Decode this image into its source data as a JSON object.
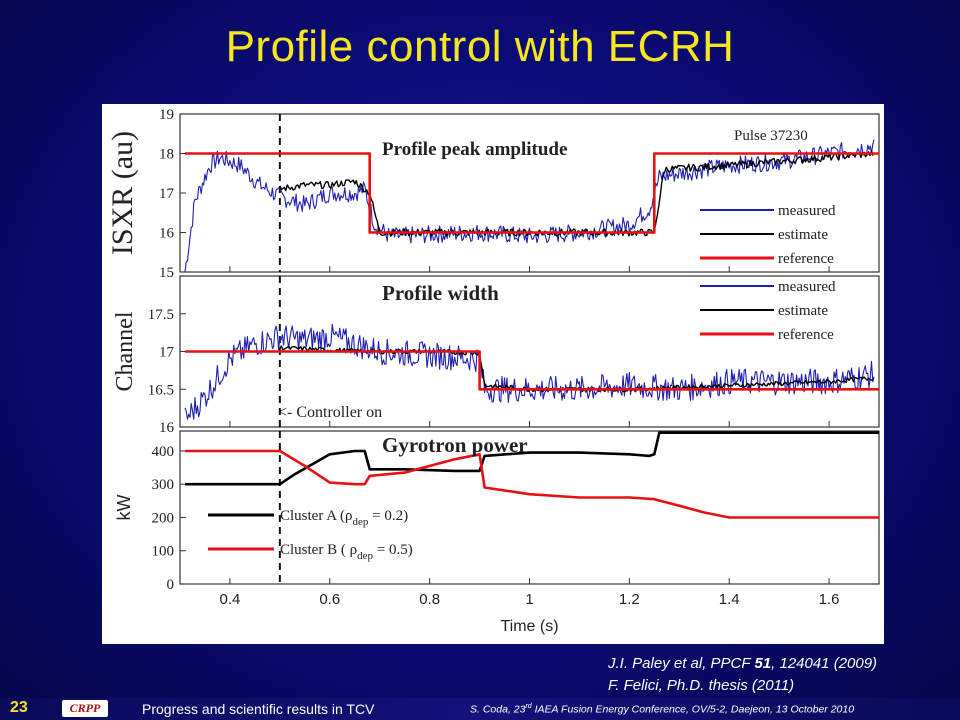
{
  "slide": {
    "title": "Profile control with ECRH",
    "number": "23",
    "footer_left": "Progress and scientific results in TCV",
    "footer_right_pre": "S. Coda, 23",
    "footer_right_sup": "rd",
    "footer_right_post": " IAEA Fusion Energy Conference, OV/5-2, Daejeon, 13 October 2010",
    "logo_text": "CRPP",
    "ref1_pre": "J.I. Paley et al, PPCF ",
    "ref1_bold": "51",
    "ref1_post": ", 124041 (2009)",
    "ref2": "F. Felici, Ph.D. thesis (2011)",
    "colors": {
      "title": "#f5e61e",
      "measured": "#1f1fb0",
      "estimate": "#000000",
      "reference": "#e81010"
    }
  },
  "chart_data": [
    {
      "type": "line",
      "panel": "Profile peak amplitude",
      "title": "Profile peak amplitude",
      "annotation": "Pulse 37230",
      "ylabel": "ISXR (au)",
      "ylim": [
        15,
        19
      ],
      "yticks": [
        15,
        16,
        17,
        18,
        19
      ],
      "legend": [
        "measured",
        "estimate",
        "reference"
      ],
      "series": [
        {
          "name": "measured",
          "x": [
            0.31,
            0.33,
            0.36,
            0.38,
            0.42,
            0.46,
            0.5,
            0.55,
            0.6,
            0.65,
            0.67,
            0.69,
            0.72,
            0.8,
            0.9,
            1.0,
            1.1,
            1.2,
            1.24,
            1.26,
            1.3,
            1.4,
            1.5,
            1.6,
            1.69
          ],
          "y": [
            15.0,
            16.8,
            17.7,
            17.9,
            17.7,
            17.2,
            16.9,
            16.7,
            17.0,
            17.0,
            17.1,
            16.2,
            15.9,
            15.95,
            16.0,
            15.9,
            16.0,
            16.2,
            16.6,
            17.4,
            17.5,
            17.7,
            17.8,
            18.0,
            18.2
          ]
        },
        {
          "name": "estimate",
          "x": [
            0.5,
            0.55,
            0.6,
            0.65,
            0.68,
            0.7,
            0.8,
            0.9,
            1.0,
            1.1,
            1.2,
            1.25,
            1.27,
            1.4,
            1.5,
            1.6,
            1.69
          ],
          "y": [
            17.1,
            17.2,
            17.2,
            17.3,
            17.0,
            16.0,
            16.0,
            16.0,
            16.0,
            16.0,
            16.0,
            16.0,
            17.6,
            17.7,
            17.8,
            17.9,
            18.0
          ]
        },
        {
          "name": "reference",
          "x": [
            0.31,
            0.68,
            0.68,
            1.25,
            1.25,
            1.7
          ],
          "y": [
            18,
            18,
            16,
            16,
            18,
            18
          ]
        }
      ]
    },
    {
      "type": "line",
      "panel": "Profile width",
      "title": "Profile width",
      "annotation": "<- Controller on",
      "ylabel": "Channel",
      "ylim": [
        16,
        18
      ],
      "yticks": [
        16,
        16.5,
        17,
        17.5
      ],
      "legend": [
        "measured",
        "estimate",
        "reference"
      ],
      "series": [
        {
          "name": "measured",
          "x": [
            0.31,
            0.35,
            0.4,
            0.45,
            0.5,
            0.55,
            0.6,
            0.7,
            0.8,
            0.9,
            0.91,
            1.0,
            1.1,
            1.2,
            1.3,
            1.4,
            1.5,
            1.6,
            1.69
          ],
          "y": [
            16.1,
            16.4,
            16.9,
            17.1,
            17.2,
            17.15,
            17.2,
            17.0,
            16.95,
            16.9,
            16.5,
            16.5,
            16.5,
            16.55,
            16.5,
            16.6,
            16.6,
            16.6,
            16.7
          ]
        },
        {
          "name": "estimate",
          "x": [
            0.5,
            0.6,
            0.7,
            0.8,
            0.9,
            0.91,
            1.0,
            1.2,
            1.4,
            1.6,
            1.69
          ],
          "y": [
            17.05,
            17.02,
            17.0,
            17.0,
            16.98,
            16.55,
            16.5,
            16.5,
            16.55,
            16.6,
            16.65
          ]
        },
        {
          "name": "reference",
          "x": [
            0.31,
            0.9,
            0.9,
            1.7
          ],
          "y": [
            17,
            17,
            16.5,
            16.5
          ]
        }
      ]
    },
    {
      "type": "line",
      "panel": "Gyrotron power",
      "title": "Gyrotron power",
      "ylabel": "kW",
      "xlabel": "Time (s)",
      "ylim": [
        0,
        460
      ],
      "yticks": [
        0,
        100,
        200,
        300,
        400
      ],
      "xlim": [
        0.3,
        1.7
      ],
      "xticks": [
        0.4,
        0.6,
        0.8,
        1.0,
        1.2,
        1.4,
        1.6
      ],
      "xtick_labels": [
        "0.4",
        "0.6",
        "0.8",
        "1",
        "1.2",
        "1.4",
        "1.6"
      ],
      "legend_a_pre": "Cluster A (",
      "legend_a_sym": "ρ",
      "legend_a_sub": "dep",
      "legend_a_post": " = 0.2)",
      "legend_b_pre": "Cluster B ( ",
      "legend_b_sym": "ρ",
      "legend_b_sub": "dep",
      "legend_b_post": " = 0.5)",
      "series": [
        {
          "name": "Cluster A",
          "x": [
            0.31,
            0.5,
            0.53,
            0.6,
            0.65,
            0.67,
            0.68,
            0.75,
            0.85,
            0.9,
            0.91,
            1.0,
            1.1,
            1.2,
            1.24,
            1.25,
            1.26,
            1.7
          ],
          "y": [
            300,
            300,
            330,
            390,
            400,
            400,
            345,
            345,
            340,
            340,
            385,
            395,
            395,
            390,
            385,
            390,
            455,
            455
          ]
        },
        {
          "name": "Cluster B",
          "x": [
            0.31,
            0.5,
            0.55,
            0.6,
            0.65,
            0.67,
            0.68,
            0.75,
            0.85,
            0.9,
            0.91,
            1.0,
            1.1,
            1.2,
            1.25,
            1.3,
            1.35,
            1.4,
            1.7
          ],
          "y": [
            400,
            400,
            355,
            305,
            300,
            300,
            325,
            335,
            375,
            390,
            290,
            270,
            260,
            260,
            255,
            235,
            215,
            200,
            200
          ]
        }
      ]
    }
  ]
}
